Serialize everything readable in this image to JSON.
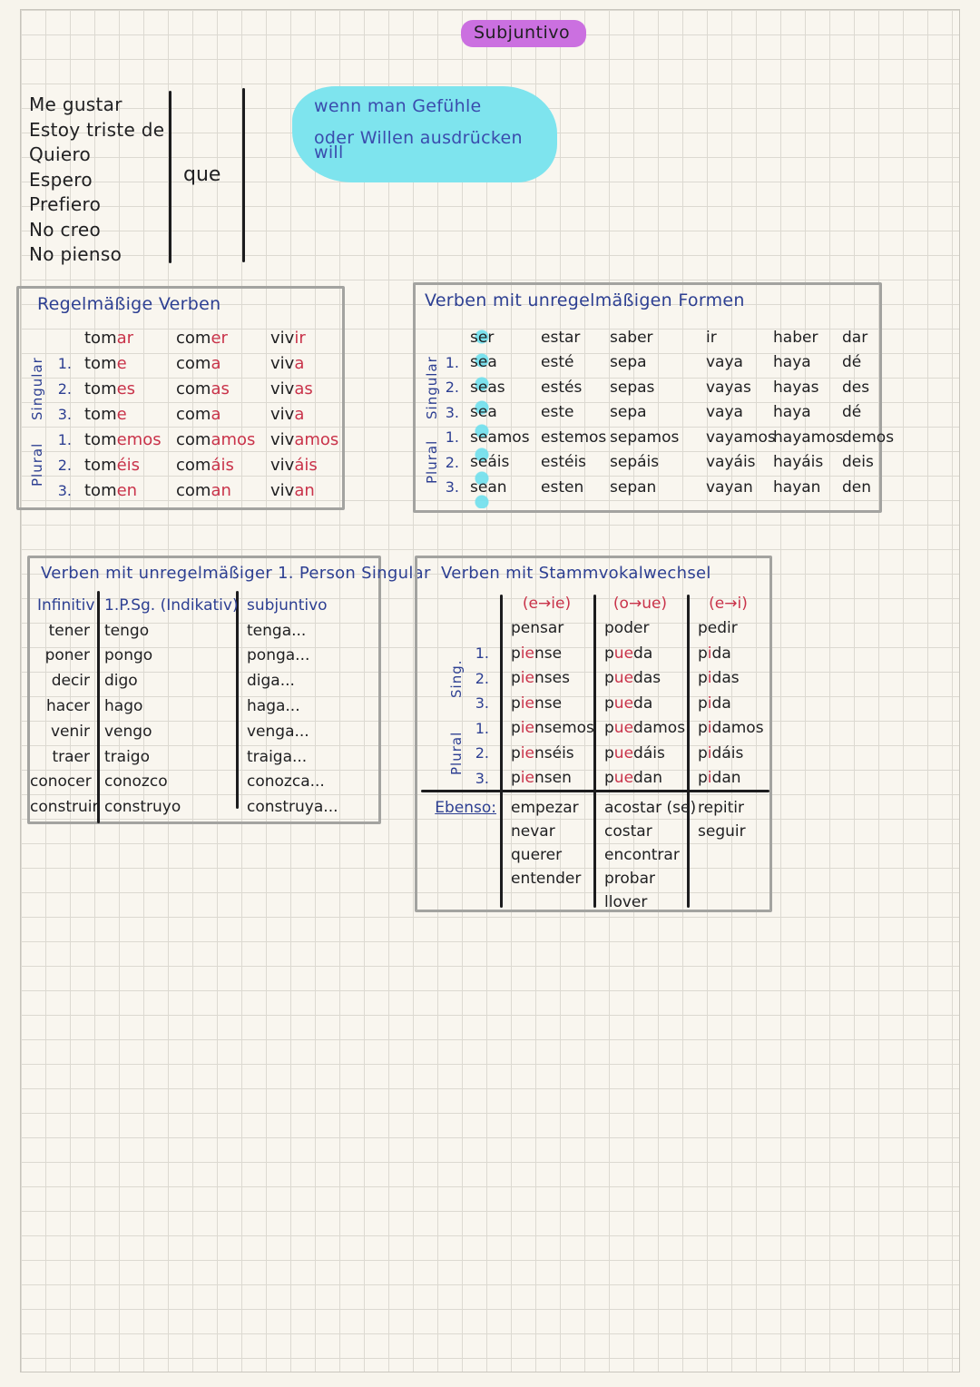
{
  "page": {
    "title": "Subjuntivo"
  },
  "intro": {
    "phrases": [
      "Me gustar",
      "Estoy triste de",
      "Quiero",
      "Espero",
      "Prefiero",
      "No creo",
      "No pienso"
    ],
    "connector": "que",
    "note_lines": [
      "wenn man Gefühle",
      "oder Willen ausdrücken will"
    ]
  },
  "regular_verbs": {
    "title": "Regelmäßige Verben",
    "group_labels": [
      "Singular",
      "Plural"
    ],
    "infinitives": [
      "tom[ar]",
      "com[er]",
      "viv[ir]"
    ],
    "rows": [
      {
        "person": "1.",
        "forms": [
          "tom[e]",
          "com[a]",
          "viv[a]"
        ]
      },
      {
        "person": "2.",
        "forms": [
          "tom[es]",
          "com[as]",
          "viv[as]"
        ]
      },
      {
        "person": "3.",
        "forms": [
          "tom[e]",
          "com[a]",
          "viv[a]"
        ]
      },
      {
        "person": "1.",
        "forms": [
          "tom[emos]",
          "com[amos]",
          "viv[amos]"
        ]
      },
      {
        "person": "2.",
        "forms": [
          "tom[éis]",
          "com[áis]",
          "viv[áis]"
        ]
      },
      {
        "person": "3.",
        "forms": [
          "tom[en]",
          "com[an]",
          "viv[an]"
        ]
      }
    ]
  },
  "irregular_verbs": {
    "title": "Verben mit unregelmäßigen Formen",
    "group_labels": [
      "Singular",
      "Plural"
    ],
    "verbs": [
      "ser",
      "estar",
      "saber",
      "ir",
      "haber",
      "dar"
    ],
    "rows": [
      {
        "person": "1.",
        "forms": [
          "sea",
          "esté",
          "sepa",
          "vaya",
          "haya",
          "dé"
        ]
      },
      {
        "person": "2.",
        "forms": [
          "seas",
          "estés",
          "sepas",
          "vayas",
          "hayas",
          "des"
        ]
      },
      {
        "person": "3.",
        "forms": [
          "sea",
          "este",
          "sepa",
          "vaya",
          "haya",
          "dé"
        ]
      },
      {
        "person": "1.",
        "forms": [
          "seamos",
          "estemos",
          "sepamos",
          "vayamos",
          "hayamos",
          "demos"
        ]
      },
      {
        "person": "2.",
        "forms": [
          "seáis",
          "estéis",
          "sepáis",
          "vayáis",
          "hayáis",
          "deis"
        ]
      },
      {
        "person": "3.",
        "forms": [
          "sean",
          "esten",
          "sepan",
          "vayan",
          "hayan",
          "den"
        ]
      }
    ]
  },
  "first_person_irregular": {
    "title": "Verben mit unregelmäßiger 1. Person Singular",
    "headers": [
      "Infinitiv",
      "1.P.Sg. (Indikativ)",
      "subjuntivo"
    ],
    "rows": [
      [
        "tener",
        "tengo",
        "tenga..."
      ],
      [
        "poner",
        "pongo",
        "ponga..."
      ],
      [
        "decir",
        "digo",
        "diga..."
      ],
      [
        "hacer",
        "hago",
        "haga..."
      ],
      [
        "venir",
        "vengo",
        "venga..."
      ],
      [
        "traer",
        "traigo",
        "traiga..."
      ],
      [
        "conocer",
        "conozco",
        "conozca..."
      ],
      [
        "construir",
        "construyo",
        "construya..."
      ]
    ]
  },
  "stem_change": {
    "title": "Verben mit Stammvokalwechsel",
    "group_labels": [
      "Sing.",
      "Plural"
    ],
    "changes": [
      "(e→ie)",
      "(o→ue)",
      "(e→i)"
    ],
    "verbs": [
      "pensar",
      "poder",
      "pedir"
    ],
    "rows": [
      {
        "person": "1.",
        "forms": [
          "p[ie]nse",
          "p[ue]da",
          "p[i]da"
        ]
      },
      {
        "person": "2.",
        "forms": [
          "p[ie]nses",
          "p[ue]das",
          "p[i]das"
        ]
      },
      {
        "person": "3.",
        "forms": [
          "p[ie]nse",
          "p[ue]da",
          "p[i]da"
        ]
      },
      {
        "person": "1.",
        "forms": [
          "p[ie]nsemos",
          "p[ue]damos",
          "p[i]damos"
        ]
      },
      {
        "person": "2.",
        "forms": [
          "p[ie]nséis",
          "p[ue]dáis",
          "p[i]dáis"
        ]
      },
      {
        "person": "3.",
        "forms": [
          "p[ie]nsen",
          "p[ue]dan",
          "p[i]dan"
        ]
      }
    ],
    "ebenso_label": "Ebenso:",
    "ebenso_rows": [
      [
        "empezar",
        "acostar (se)",
        "repitir"
      ],
      [
        "nevar",
        "costar",
        "seguir"
      ],
      [
        "querer",
        "encontrar",
        ""
      ],
      [
        "entender",
        "probar",
        ""
      ],
      [
        "",
        "llover",
        ""
      ]
    ]
  },
  "ink_colors": {
    "black": "#202022",
    "blue": "#2d3f92",
    "red": "#c9334a",
    "highlight_purple": "#cb70e0",
    "highlight_cyan": "#7ee4ee"
  }
}
